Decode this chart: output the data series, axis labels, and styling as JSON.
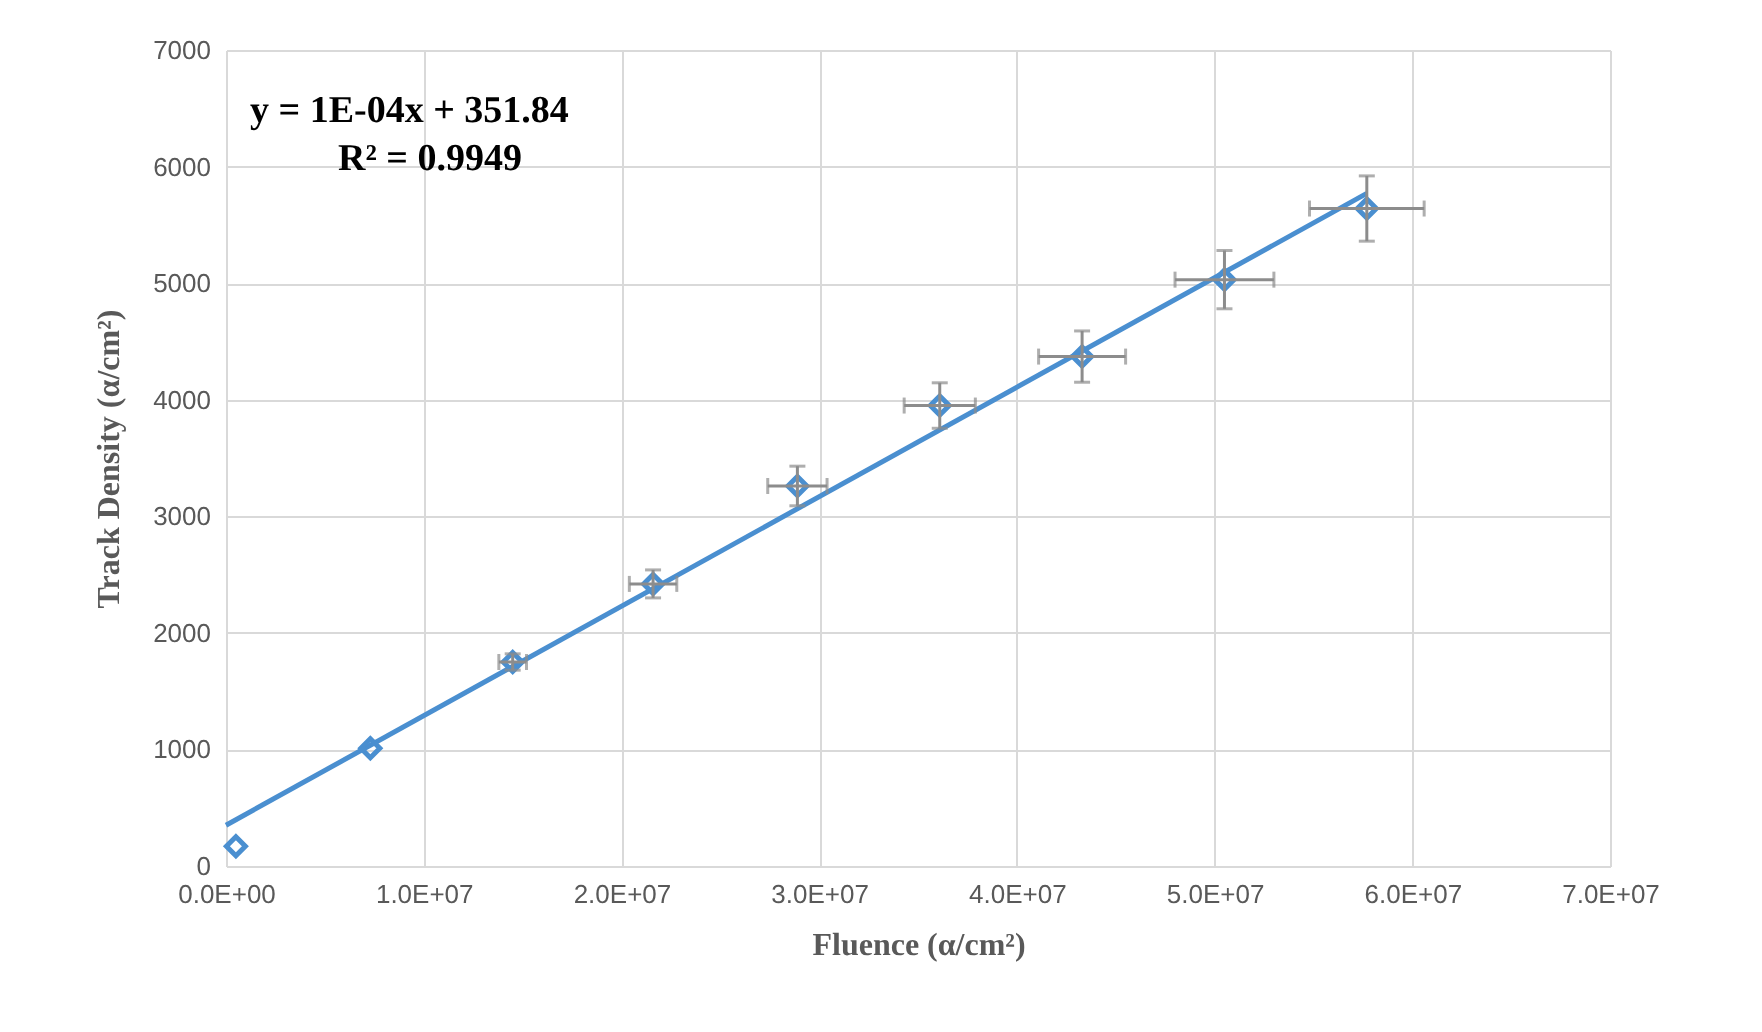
{
  "chart_data": {
    "type": "scatter",
    "xlabel": "Fluence (α/cm²)",
    "ylabel": "Track Density (α/cm²)",
    "annotations": [
      "y = 1E-04x + 351.84",
      "R² = 0.9949"
    ],
    "xlim": [
      0,
      70000000
    ],
    "ylim": [
      0,
      7000
    ],
    "xticks": [
      {
        "value": 0,
        "label": "0.0E+00"
      },
      {
        "value": 10000000,
        "label": "1.0E+07"
      },
      {
        "value": 20000000,
        "label": "2.0E+07"
      },
      {
        "value": 30000000,
        "label": "3.0E+07"
      },
      {
        "value": 40000000,
        "label": "4.0E+07"
      },
      {
        "value": 50000000,
        "label": "5.0E+07"
      },
      {
        "value": 60000000,
        "label": "6.0E+07"
      },
      {
        "value": 70000000,
        "label": "7.0E+07"
      }
    ],
    "yticks": [
      0,
      1000,
      2000,
      3000,
      4000,
      5000,
      6000,
      7000
    ],
    "grid": true,
    "marker": "diamond",
    "series": [
      {
        "color": "#4a8fd0",
        "x": [
          500000,
          7300000,
          14500000,
          21600000,
          28900000,
          36100000,
          43300000,
          50500000,
          57700000
        ],
        "values": [
          170,
          1010,
          1750,
          2420,
          3260,
          3950,
          4370,
          5030,
          5640
        ],
        "errors": [
          null,
          null,
          70,
          120,
          170,
          195,
          220,
          250,
          280
        ],
        "xerrors": [
          null,
          null,
          700000,
          1200000,
          1500000,
          1800000,
          2200000,
          2500000,
          2900000
        ]
      },
      {
        "type": "line",
        "color": "#4a8fd0",
        "x": [
          0,
          57700000
        ],
        "values": [
          350,
          5770
        ],
        "marker": "none"
      }
    ]
  }
}
